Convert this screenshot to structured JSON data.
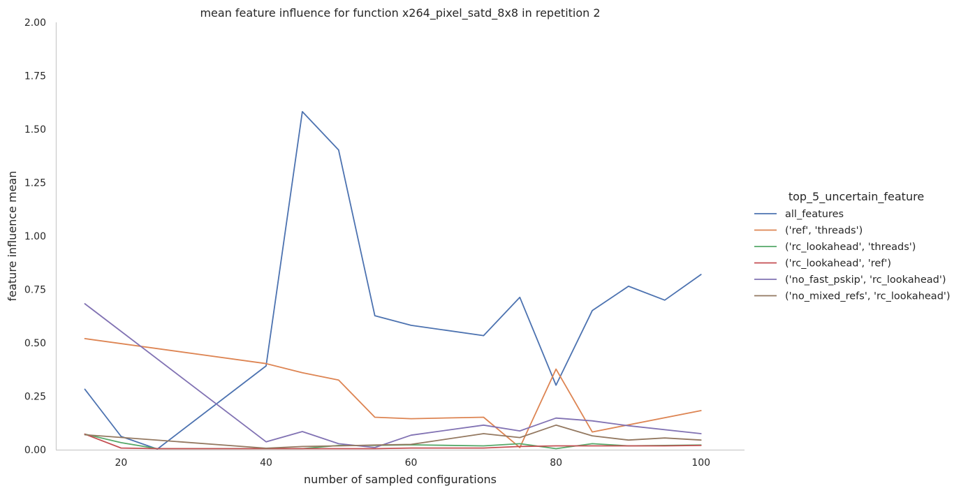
{
  "chart_data": {
    "type": "line",
    "title": "mean feature influence for function x264_pixel_satd_8x8 in repetition 2",
    "xlabel": "number of sampled configurations",
    "ylabel": "feature influence mean",
    "xlim": [
      11,
      106
    ],
    "ylim": [
      0,
      2.0
    ],
    "xticks": [
      20,
      40,
      60,
      80,
      100
    ],
    "yticks": [
      0,
      0.25,
      0.5,
      0.75,
      1.0,
      1.25,
      1.5,
      1.75,
      2.0
    ],
    "ytick_labels": [
      "0.00",
      "0.25",
      "0.50",
      "0.75",
      "1.00",
      "1.25",
      "1.50",
      "1.75",
      "2.00"
    ],
    "grid": false,
    "legend": {
      "title": "top_5_uncertain_feature",
      "placement": "right"
    },
    "x": [
      15,
      20,
      25,
      40,
      45,
      50,
      55,
      60,
      70,
      75,
      80,
      85,
      90,
      95,
      100
    ],
    "series": [
      {
        "name": "all_features",
        "color": "#4c72b0",
        "values": [
          0.283,
          0.062,
          0.003,
          0.392,
          1.582,
          1.403,
          0.627,
          0.582,
          0.534,
          0.713,
          0.302,
          0.651,
          0.765,
          0.7,
          0.82
        ]
      },
      {
        "name": "('ref', 'threads')",
        "color": "#dd8452",
        "values": [
          0.52,
          null,
          null,
          0.403,
          0.36,
          0.326,
          0.152,
          0.145,
          0.152,
          0.01,
          0.377,
          0.083,
          null,
          null,
          0.183
        ]
      },
      {
        "name": "('rc_lookahead', 'threads')",
        "color": "#55a868",
        "values": [
          0.073,
          0.033,
          0.005,
          0.005,
          0.005,
          0.02,
          0.02,
          0.023,
          0.018,
          0.028,
          0.005,
          0.028,
          0.018,
          0.02,
          0.022
        ]
      },
      {
        "name": "('rc_lookahead', 'ref')",
        "color": "#c44e52",
        "values": [
          0.073,
          0.008,
          0.005,
          0.005,
          0.005,
          0.005,
          0.005,
          0.008,
          0.008,
          0.015,
          0.018,
          0.018,
          0.018,
          0.018,
          0.02
        ]
      },
      {
        "name": "('no_fast_pskip', 'rc_lookahead')",
        "color": "#8172b3",
        "values": [
          0.683,
          null,
          null,
          0.037,
          0.085,
          0.028,
          0.01,
          0.068,
          0.115,
          0.088,
          0.148,
          0.135,
          0.112,
          null,
          0.075
        ]
      },
      {
        "name": "('no_mixed_refs', 'rc_lookahead')",
        "color": "#937860",
        "values": [
          0.07,
          null,
          null,
          0.007,
          0.015,
          0.018,
          0.022,
          0.025,
          0.075,
          0.057,
          0.115,
          0.065,
          0.045,
          0.055,
          0.045
        ]
      }
    ]
  }
}
